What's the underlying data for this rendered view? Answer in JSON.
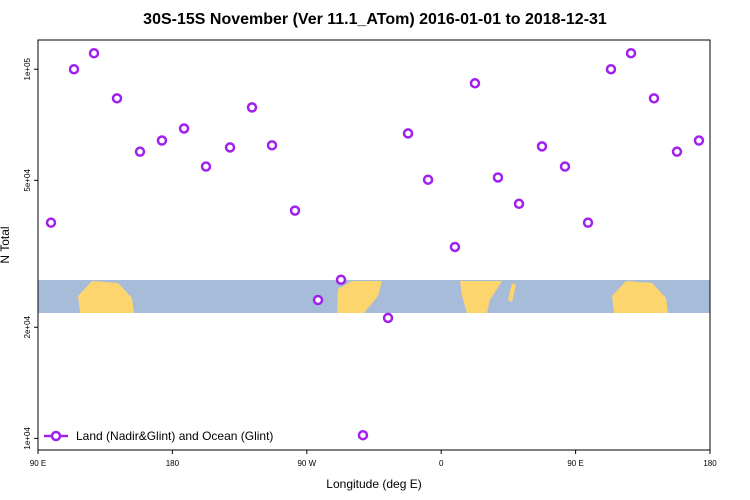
{
  "chart_data": {
    "type": "scatter",
    "title": "30S-15S November (Ver 11.1_ATom)   2016-01-01 to 2018-12-31",
    "x_label": "Longitude (deg E)",
    "y_label": "N Total",
    "log_y": true,
    "legend": "lower left",
    "xlim": [
      90,
      540
    ],
    "ylim": [
      9300,
      120000
    ],
    "xticks": [
      {
        "value": 90,
        "label": "90 E"
      },
      {
        "value": 180,
        "label": "180"
      },
      {
        "value": 270,
        "label": "90 W"
      },
      {
        "value": 360,
        "label": "0"
      },
      {
        "value": 450,
        "label": "90 E"
      },
      {
        "value": 540,
        "label": "180"
      }
    ],
    "yticks": [
      {
        "value": 10000,
        "label": "1e+04"
      },
      {
        "value": 20000,
        "label": "2e+04"
      },
      {
        "value": 50000,
        "label": "5e+04"
      },
      {
        "value": 100000,
        "label": "1e+05"
      }
    ],
    "series": [
      {
        "name": "Land (Nadir&Glint) and Ocean (Glint)",
        "color": "#a020f0",
        "x": [
          98.7,
          114.1,
          127.5,
          142.9,
          158.3,
          173.0,
          187.8,
          202.5,
          218.6,
          233.3,
          246.7,
          262.1,
          277.5,
          292.9,
          307.6,
          324.4,
          337.8,
          351.2,
          369.2,
          382.6,
          398.0,
          412.1,
          427.5,
          442.9,
          458.3,
          473.7,
          487.1,
          502.5,
          517.9,
          532.6
        ],
        "values": [
          38400,
          100000,
          110500,
          83400,
          59800,
          64100,
          69100,
          54500,
          61400,
          78800,
          62200,
          41400,
          23700,
          26900,
          10200,
          21200,
          67000,
          50200,
          33000,
          91600,
          50900,
          43200,
          61800,
          54500,
          38400,
          100000,
          110500,
          83400,
          59800,
          64100
        ]
      }
    ]
  }
}
